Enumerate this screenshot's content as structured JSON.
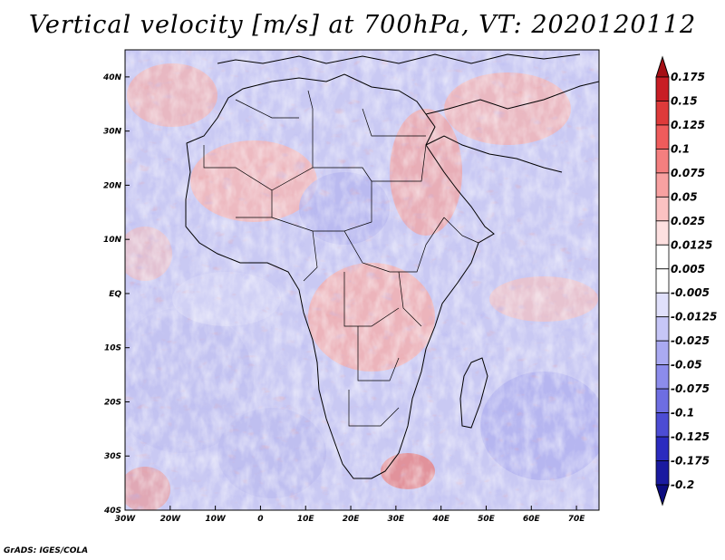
{
  "title": "Vertical velocity [m/s] at 700hPa, VT: 2020120112",
  "footer": "GrADS: IGES/COLA",
  "map": {
    "lon_range": [
      -30,
      75
    ],
    "lat_range": [
      -40,
      45
    ],
    "x_ticks": [
      "30W",
      "20W",
      "10W",
      "0",
      "10E",
      "20E",
      "30E",
      "40E",
      "50E",
      "60E",
      "70E"
    ],
    "y_ticks": [
      "40S",
      "30S",
      "20S",
      "10S",
      "EQ",
      "10N",
      "20N",
      "30N",
      "40N"
    ]
  },
  "colorbar": {
    "levels": [
      "0.175",
      "0.15",
      "0.125",
      "0.1",
      "0.075",
      "0.05",
      "0.025",
      "0.0125",
      "0.005",
      "-0.005",
      "-0.0125",
      "-0.025",
      "-0.05",
      "-0.075",
      "-0.1",
      "-0.125",
      "-0.175",
      "-0.2"
    ],
    "colors": [
      "#a50f15",
      "#c81d25",
      "#de3a3a",
      "#ef5c5c",
      "#f47f7f",
      "#f8a1a1",
      "#fbc2c2",
      "#fde0e0",
      "#ffffff",
      "#ffffff",
      "#e0e0fb",
      "#c6c6f7",
      "#aaaaf2",
      "#8c8cec",
      "#6e6ee2",
      "#4c4cd4",
      "#2b2bbf",
      "#1a1aa0",
      "#0c0c80"
    ]
  },
  "colors": {
    "bg": "#ffffff",
    "frame": "#000000"
  }
}
